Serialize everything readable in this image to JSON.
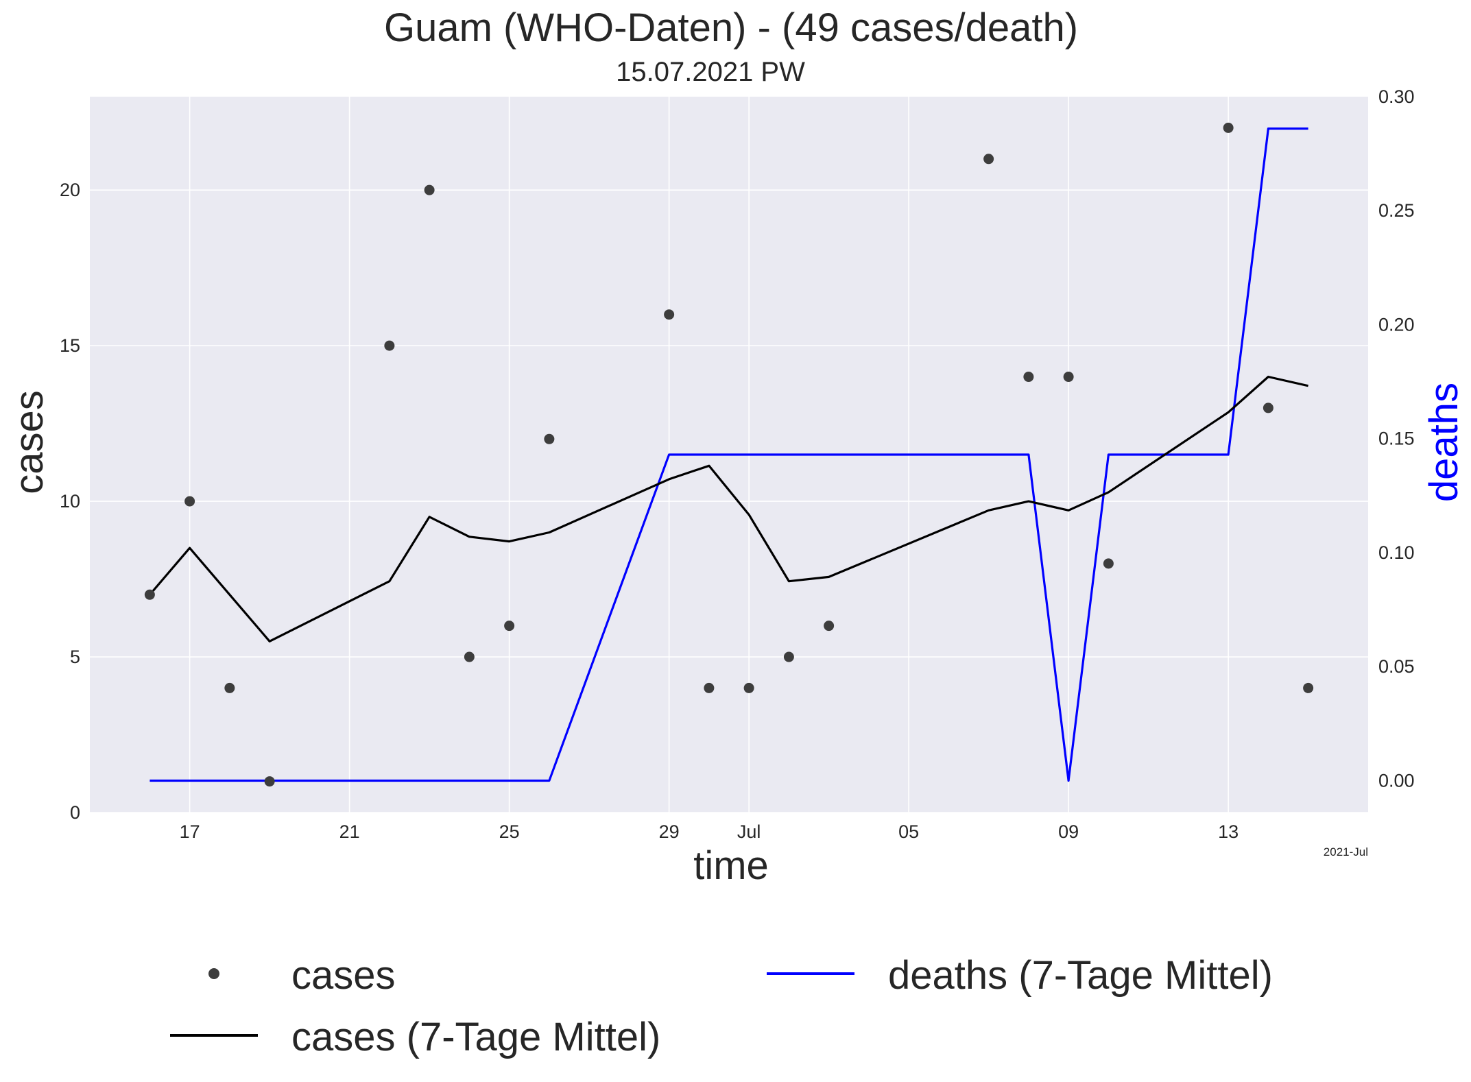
{
  "chart_data": {
    "type": "line",
    "title": "Guam (WHO-Daten) - (49 cases/death)",
    "subtitle": "15.07.2021 PW",
    "xlabel": "time",
    "ylabel": "cases",
    "y2label": "deaths",
    "x_offset_label": "2021-Jul",
    "x": [
      "2021-06-16",
      "2021-06-17",
      "2021-06-18",
      "2021-06-19",
      "2021-06-22",
      "2021-06-23",
      "2021-06-24",
      "2021-06-25",
      "2021-06-26",
      "2021-06-29",
      "2021-06-30",
      "2021-07-01",
      "2021-07-02",
      "2021-07-03",
      "2021-07-07",
      "2021-07-08",
      "2021-07-09",
      "2021-07-10",
      "2021-07-13",
      "2021-07-14",
      "2021-07-15"
    ],
    "xlim": [
      "2021-06-14T12:00",
      "2021-07-16T12:00"
    ],
    "ylim": [
      0,
      23
    ],
    "y2lim": [
      -0.014,
      0.3
    ],
    "xticks": [
      {
        "date": "2021-06-17",
        "label": "17"
      },
      {
        "date": "2021-06-21",
        "label": "21"
      },
      {
        "date": "2021-06-25",
        "label": "25"
      },
      {
        "date": "2021-06-29",
        "label": "29"
      },
      {
        "date": "2021-07-01",
        "label": "Jul"
      },
      {
        "date": "2021-07-05",
        "label": "05"
      },
      {
        "date": "2021-07-09",
        "label": "09"
      },
      {
        "date": "2021-07-13",
        "label": "13"
      }
    ],
    "yticks": [
      {
        "value": 0,
        "label": "0"
      },
      {
        "value": 5,
        "label": "5"
      },
      {
        "value": 10,
        "label": "10"
      },
      {
        "value": 15,
        "label": "15"
      },
      {
        "value": 20,
        "label": "20"
      }
    ],
    "y2ticks": [
      {
        "value": 0.0,
        "label": "0.00"
      },
      {
        "value": 0.05,
        "label": "0.05"
      },
      {
        "value": 0.1,
        "label": "0.10"
      },
      {
        "value": 0.15,
        "label": "0.15"
      },
      {
        "value": 0.2,
        "label": "0.20"
      },
      {
        "value": 0.25,
        "label": "0.25"
      },
      {
        "value": 0.3,
        "label": "0.30"
      }
    ],
    "grid": true,
    "legend_position": "bottom",
    "series": [
      {
        "name": "cases",
        "kind": "scatter",
        "axis": "left",
        "color": "#3d3d3d",
        "values": [
          7,
          10,
          4,
          1,
          15,
          20,
          5,
          6,
          12,
          16,
          4,
          4,
          5,
          6,
          21,
          14,
          14,
          8,
          22,
          13,
          4
        ]
      },
      {
        "name": "cases (7-Tage Mittel)",
        "kind": "line",
        "axis": "left",
        "color": "#000000",
        "values": [
          7,
          8.5,
          7,
          5.5,
          7.43,
          9.5,
          8.86,
          8.71,
          9.0,
          10.71,
          11.14,
          9.57,
          7.43,
          7.57,
          9.71,
          10.0,
          9.71,
          10.29,
          12.86,
          14.0,
          13.71
        ]
      },
      {
        "name": "deaths (7-Tage Mittel)",
        "kind": "line",
        "axis": "right",
        "color": "#0000ff",
        "values": [
          0,
          0,
          0,
          0,
          0,
          0,
          0,
          0,
          0,
          0.143,
          0.143,
          0.143,
          0.143,
          0.143,
          0.143,
          0.143,
          0,
          0.143,
          0.143,
          0.286,
          0.286
        ]
      }
    ]
  },
  "colors": {
    "plot_background": "#eaeaf2",
    "grid": "#ffffff",
    "deaths_axis": "#0000ff"
  }
}
